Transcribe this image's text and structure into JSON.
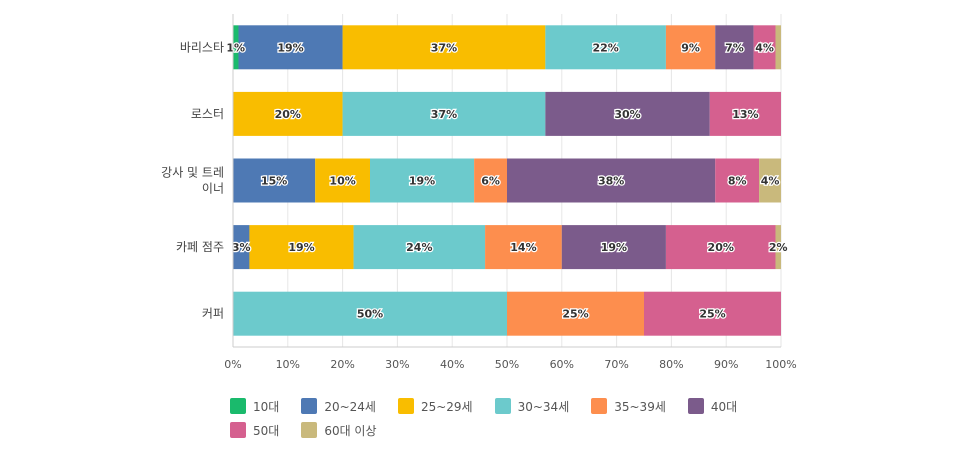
{
  "chart_data": {
    "type": "bar",
    "orientation": "horizontal",
    "stacked": true,
    "percent": true,
    "categories": [
      [
        "바리스타"
      ],
      [
        "로스터"
      ],
      [
        "강사 및 트레",
        "이너"
      ],
      [
        "카페 점주"
      ],
      [
        "커퍼"
      ]
    ],
    "series": [
      {
        "name": "10대",
        "color": "#1aba6c",
        "values": [
          1,
          0,
          0,
          0,
          0
        ],
        "labels": [
          "1%",
          "",
          "",
          "",
          ""
        ]
      },
      {
        "name": "20~24세",
        "color": "#4e79b4",
        "values": [
          19,
          0,
          15,
          3,
          0
        ],
        "labels": [
          "19%",
          "",
          "15%",
          "3%",
          ""
        ]
      },
      {
        "name": "25~29세",
        "color": "#f9bd00",
        "values": [
          37,
          20,
          10,
          19,
          0
        ],
        "labels": [
          "37%",
          "20%",
          "10%",
          "19%",
          ""
        ]
      },
      {
        "name": "30~34세",
        "color": "#6ccacc",
        "values": [
          22,
          37,
          19,
          24,
          50
        ],
        "labels": [
          "22%",
          "37%",
          "19%",
          "24%",
          "50%"
        ]
      },
      {
        "name": "35~39세",
        "color": "#fd8e4e",
        "values": [
          9,
          0,
          6,
          14,
          25
        ],
        "labels": [
          "9%",
          "",
          "6%",
          "14%",
          "25%"
        ]
      },
      {
        "name": "40대",
        "color": "#7b5b8b",
        "values": [
          7,
          30,
          38,
          19,
          0
        ],
        "labels": [
          "7%",
          "30%",
          "38%",
          "19%",
          ""
        ]
      },
      {
        "name": "50대",
        "color": "#d5608f",
        "values": [
          4,
          13,
          8,
          20,
          25
        ],
        "labels": [
          "4%",
          "13%",
          "8%",
          "20%",
          "25%"
        ]
      },
      {
        "name": "60대 이상",
        "color": "#c9b97c",
        "values": [
          2,
          0,
          4,
          2,
          0
        ],
        "labels": [
          "",
          "",
          "4%",
          "2%",
          ""
        ]
      }
    ],
    "xlim": [
      0,
      100
    ],
    "xticks": [
      "0%",
      "10%",
      "20%",
      "30%",
      "40%",
      "50%",
      "60%",
      "70%",
      "80%",
      "90%",
      "100%"
    ],
    "grid": true,
    "legend_position": "bottom"
  }
}
